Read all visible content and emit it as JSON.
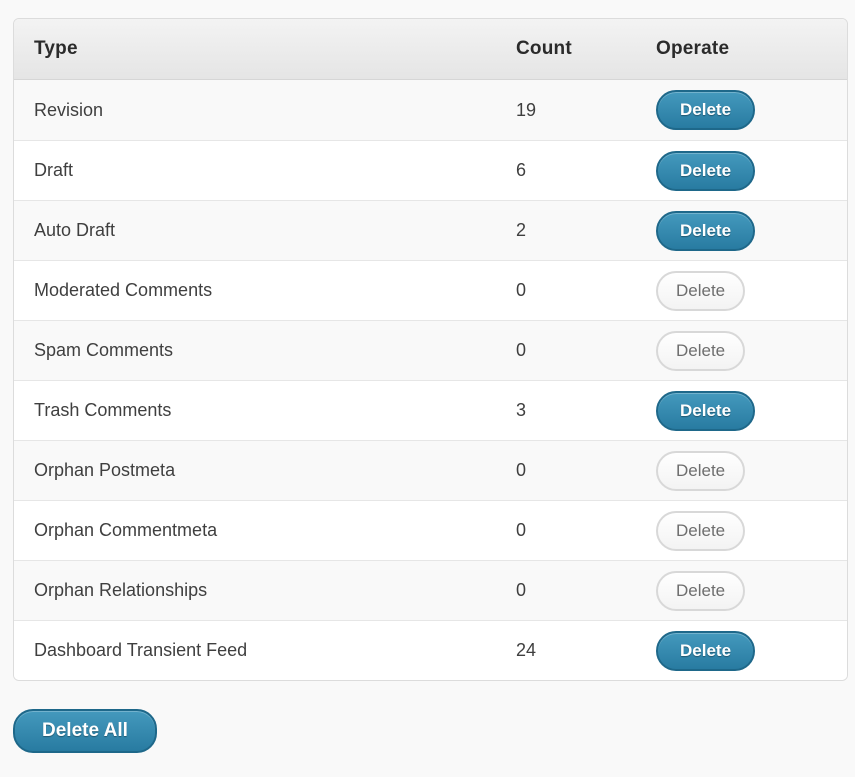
{
  "table": {
    "headers": {
      "type": "Type",
      "count": "Count",
      "operate": "Operate"
    },
    "rows": [
      {
        "type": "Revision",
        "count": "19",
        "button_label": "Delete",
        "enabled": true
      },
      {
        "type": "Draft",
        "count": "6",
        "button_label": "Delete",
        "enabled": true
      },
      {
        "type": "Auto Draft",
        "count": "2",
        "button_label": "Delete",
        "enabled": true
      },
      {
        "type": "Moderated Comments",
        "count": "0",
        "button_label": "Delete",
        "enabled": false
      },
      {
        "type": "Spam Comments",
        "count": "0",
        "button_label": "Delete",
        "enabled": false
      },
      {
        "type": "Trash Comments",
        "count": "3",
        "button_label": "Delete",
        "enabled": true
      },
      {
        "type": "Orphan Postmeta",
        "count": "0",
        "button_label": "Delete",
        "enabled": false
      },
      {
        "type": "Orphan Commentmeta",
        "count": "0",
        "button_label": "Delete",
        "enabled": false
      },
      {
        "type": "Orphan Relationships",
        "count": "0",
        "button_label": "Delete",
        "enabled": false
      },
      {
        "type": "Dashboard Transient Feed",
        "count": "24",
        "button_label": "Delete",
        "enabled": true
      }
    ],
    "footer": {
      "delete_all_label": "Delete All"
    }
  },
  "colors": {
    "accent_blue": "#2f87ac",
    "accent_blue_border": "#1e688a",
    "disabled_border": "#d8d8d8",
    "disabled_text": "#6e6e6e",
    "row_alt_background": "#f9f9f9",
    "page_background": "#f9f9f9"
  }
}
